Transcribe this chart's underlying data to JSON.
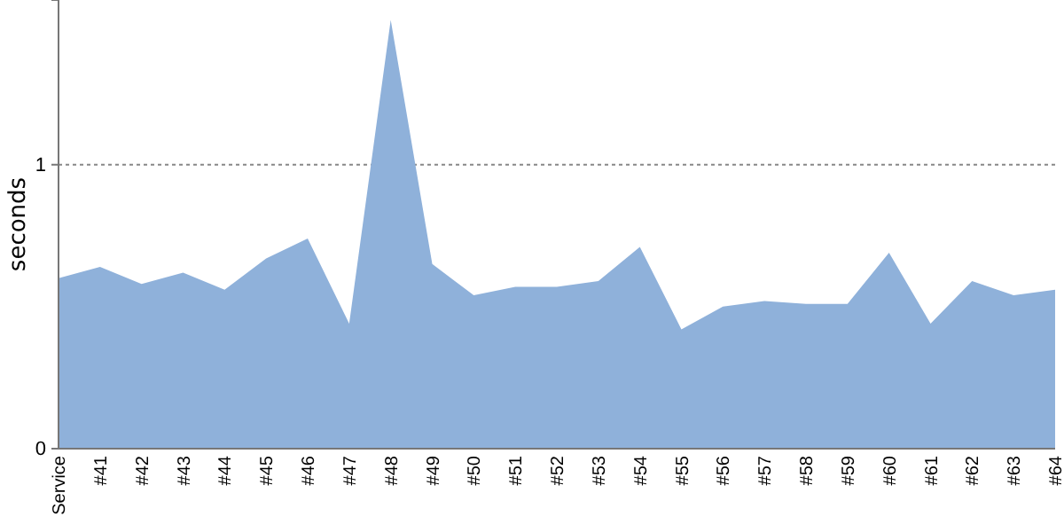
{
  "chart_data": {
    "type": "area",
    "ylabel": "seconds",
    "categories": [
      "Service",
      "#41",
      "#42",
      "#43",
      "#44",
      "#45",
      "#46",
      "#47",
      "#48",
      "#49",
      "#50",
      "#51",
      "#52",
      "#53",
      "#54",
      "#55",
      "#56",
      "#57",
      "#58",
      "#59",
      "#60",
      "#61",
      "#62",
      "#63",
      "#64"
    ],
    "series": [
      {
        "color": "#8fb1da",
        "values": [
          0.6,
          0.64,
          0.58,
          0.62,
          0.56,
          0.67,
          0.74,
          0.44,
          1.51,
          0.65,
          0.54,
          0.57,
          0.57,
          0.59,
          0.71,
          0.42,
          0.5,
          0.52,
          0.51,
          0.51,
          0.69,
          0.44,
          0.59,
          0.54,
          0.56
        ]
      }
    ],
    "ylim": [
      0,
      1.58
    ],
    "yticks": [
      0,
      1
    ],
    "grid": "y"
  }
}
